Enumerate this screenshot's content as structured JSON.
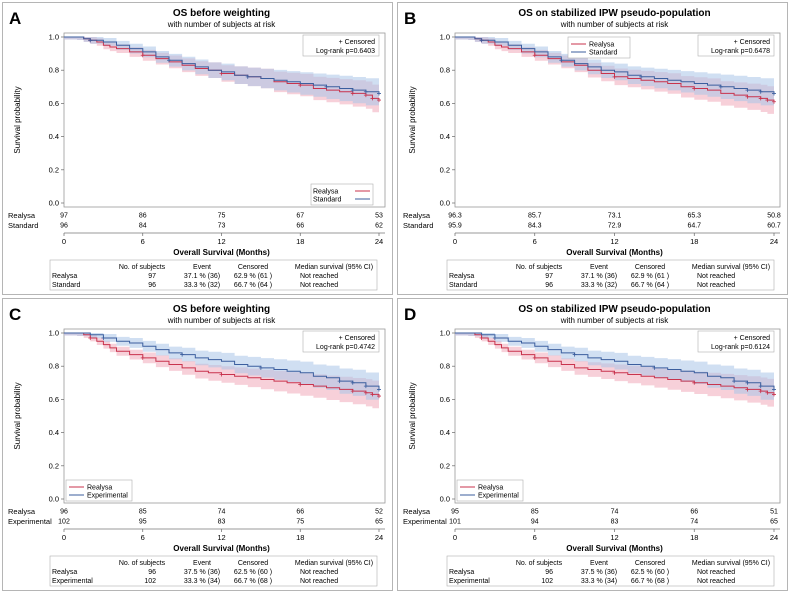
{
  "chart_data": [
    {
      "type": "line",
      "panel_label": "A",
      "title": "OS before weighting",
      "subtitle": "with number of subjects at risk",
      "xlabel": "Overall Survival (Months)",
      "ylabel": "Survival probability",
      "xticks": [
        "0",
        "6",
        "12",
        "18",
        "24"
      ],
      "yticks": [
        "0.0",
        "0.2",
        "0.4",
        "0.6",
        "0.8",
        "1.0"
      ],
      "xlim": [
        0,
        24
      ],
      "ylim": [
        0,
        1
      ],
      "censor_label": "+ Censored",
      "logrank": "Log-rank p=0.6403",
      "legend_position": "lower-right",
      "series": [
        {
          "name": "Realysa",
          "color": "#c8334d",
          "band": "#f1a9b9",
          "x": [
            0,
            1,
            1.5,
            2,
            2.5,
            3,
            3.5,
            4,
            5,
            6,
            7,
            8,
            9,
            10,
            11,
            12,
            13,
            14,
            15,
            16,
            17,
            18,
            19,
            20,
            21,
            22,
            23,
            23.5,
            24
          ],
          "y": [
            1,
            1,
            0.99,
            0.98,
            0.97,
            0.95,
            0.94,
            0.93,
            0.91,
            0.89,
            0.87,
            0.85,
            0.83,
            0.81,
            0.8,
            0.78,
            0.77,
            0.76,
            0.75,
            0.73,
            0.72,
            0.71,
            0.69,
            0.68,
            0.67,
            0.66,
            0.65,
            0.63,
            0.62
          ]
        },
        {
          "name": "Standard",
          "color": "#3b5e9e",
          "band": "#a9c4e8",
          "x": [
            0,
            1,
            1.5,
            2,
            3,
            4,
            5,
            6,
            7,
            8,
            9,
            10,
            11,
            12,
            13,
            14,
            15,
            16,
            17,
            18,
            19,
            20,
            21,
            22,
            23,
            24
          ],
          "y": [
            1,
            1,
            0.99,
            0.98,
            0.97,
            0.95,
            0.93,
            0.91,
            0.88,
            0.86,
            0.84,
            0.82,
            0.8,
            0.79,
            0.77,
            0.76,
            0.75,
            0.74,
            0.73,
            0.72,
            0.71,
            0.7,
            0.69,
            0.68,
            0.67,
            0.66
          ]
        }
      ],
      "at_risk": [
        {
          "name": "Realysa",
          "values": [
            "97",
            "86",
            "75",
            "67",
            "53"
          ]
        },
        {
          "name": "Standard",
          "values": [
            "96",
            "84",
            "73",
            "66",
            "62"
          ]
        }
      ],
      "table": {
        "headers": [
          "No. of subjects",
          "Event",
          "Censored",
          "Median survival (95% CI)"
        ],
        "rows": [
          [
            "Realysa",
            "97",
            "37.1 % (36)",
            "62.9 % (61 )",
            "Not reached"
          ],
          [
            "Standard",
            "96",
            "33.3 % (32)",
            "66.7 % (64 )",
            "Not reached"
          ]
        ]
      }
    },
    {
      "type": "line",
      "panel_label": "B",
      "title": "OS on stabilized IPW pseudo-population",
      "subtitle": "with number of subjects at risk",
      "xlabel": "Overall Survival (Months)",
      "ylabel": "Survival probability",
      "xticks": [
        "0",
        "6",
        "12",
        "18",
        "24"
      ],
      "yticks": [
        "0.0",
        "0.2",
        "0.4",
        "0.6",
        "0.8",
        "1.0"
      ],
      "xlim": [
        0,
        24
      ],
      "ylim": [
        0,
        1
      ],
      "censor_label": "+ Censored",
      "logrank": "Log-rank p=0.6478",
      "legend_position": "top-center",
      "series": [
        {
          "name": "Realysa",
          "color": "#c8334d",
          "band": "#f1a9b9",
          "x": [
            0,
            1,
            1.5,
            2,
            2.5,
            3,
            3.5,
            4,
            5,
            6,
            7,
            8,
            9,
            10,
            11,
            12,
            13,
            14,
            15,
            16,
            17,
            18,
            19,
            20,
            21,
            22,
            23,
            23.5,
            24
          ],
          "y": [
            1,
            1,
            0.99,
            0.98,
            0.97,
            0.95,
            0.94,
            0.93,
            0.91,
            0.89,
            0.87,
            0.85,
            0.83,
            0.8,
            0.78,
            0.76,
            0.75,
            0.74,
            0.73,
            0.72,
            0.7,
            0.69,
            0.68,
            0.66,
            0.65,
            0.64,
            0.63,
            0.62,
            0.61
          ]
        },
        {
          "name": "Standard",
          "color": "#3b5e9e",
          "band": "#a9c4e8",
          "x": [
            0,
            1,
            1.5,
            2,
            3,
            4,
            5,
            6,
            7,
            8,
            9,
            10,
            11,
            12,
            13,
            14,
            15,
            16,
            17,
            18,
            19,
            20,
            21,
            22,
            23,
            24
          ],
          "y": [
            1,
            1,
            0.99,
            0.98,
            0.97,
            0.95,
            0.93,
            0.91,
            0.88,
            0.86,
            0.84,
            0.82,
            0.8,
            0.79,
            0.77,
            0.76,
            0.75,
            0.74,
            0.73,
            0.72,
            0.71,
            0.7,
            0.69,
            0.68,
            0.67,
            0.66
          ]
        }
      ],
      "at_risk": [
        {
          "name": "Realysa",
          "values": [
            "96.3",
            "85.7",
            "73.1",
            "65.3",
            "50.8"
          ]
        },
        {
          "name": "Standard",
          "values": [
            "95.9",
            "84.3",
            "72.9",
            "64.7",
            "60.7"
          ]
        }
      ],
      "table": {
        "headers": [
          "No. of subjects",
          "Event",
          "Censored",
          "Median survival (95% CI)"
        ],
        "rows": [
          [
            "Realysa",
            "97",
            "37.1 % (36)",
            "62.9 % (61 )",
            "Not reached"
          ],
          [
            "Standard",
            "96",
            "33.3 % (32)",
            "66.7 % (64 )",
            "Not reached"
          ]
        ]
      }
    },
    {
      "type": "line",
      "panel_label": "C",
      "title": "OS before weighting",
      "subtitle": "with number of subjects at risk",
      "xlabel": "Overall Survival (Months)",
      "ylabel": "Survival probability",
      "xticks": [
        "0",
        "6",
        "12",
        "18",
        "24"
      ],
      "yticks": [
        "0.0",
        "0.2",
        "0.4",
        "0.6",
        "0.8",
        "1.0"
      ],
      "xlim": [
        0,
        24
      ],
      "ylim": [
        0,
        1
      ],
      "censor_label": "+ Censored",
      "logrank": "Log-rank p=0.4742",
      "legend_position": "lower-left",
      "series": [
        {
          "name": "Realysa",
          "color": "#c8334d",
          "band": "#f1a9b9",
          "x": [
            0,
            1,
            1.5,
            2,
            2.5,
            3,
            3.5,
            4,
            5,
            6,
            7,
            8,
            9,
            10,
            11,
            12,
            13,
            14,
            15,
            16,
            17,
            18,
            19,
            20,
            21,
            22,
            23,
            23.5,
            24
          ],
          "y": [
            1,
            1,
            0.99,
            0.97,
            0.95,
            0.93,
            0.91,
            0.89,
            0.87,
            0.85,
            0.83,
            0.81,
            0.79,
            0.77,
            0.76,
            0.75,
            0.74,
            0.73,
            0.72,
            0.71,
            0.7,
            0.69,
            0.68,
            0.67,
            0.66,
            0.65,
            0.64,
            0.63,
            0.62
          ]
        },
        {
          "name": "Experimental",
          "color": "#3b5e9e",
          "band": "#a9c4e8",
          "x": [
            0,
            1,
            2,
            3,
            4,
            5,
            6,
            7,
            8,
            9,
            10,
            11,
            12,
            13,
            14,
            15,
            16,
            17,
            18,
            19,
            20,
            21,
            22,
            23,
            24
          ],
          "y": [
            1,
            1,
            0.99,
            0.97,
            0.95,
            0.94,
            0.92,
            0.9,
            0.88,
            0.87,
            0.85,
            0.84,
            0.83,
            0.81,
            0.8,
            0.79,
            0.78,
            0.77,
            0.76,
            0.74,
            0.73,
            0.71,
            0.7,
            0.68,
            0.66
          ]
        }
      ],
      "at_risk": [
        {
          "name": "Realysa",
          "values": [
            "96",
            "85",
            "74",
            "66",
            "52"
          ]
        },
        {
          "name": "Experimental",
          "values": [
            "102",
            "95",
            "83",
            "75",
            "65"
          ]
        }
      ],
      "table": {
        "headers": [
          "No. of subjects",
          "Event",
          "Censored",
          "Median survival (95% CI)"
        ],
        "rows": [
          [
            "Realysa",
            "96",
            "37.5 % (36)",
            "62.5 % (60 )",
            "Not reached"
          ],
          [
            "Experimental",
            "102",
            "33.3 % (34)",
            "66.7 % (68 )",
            "Not reached"
          ]
        ]
      }
    },
    {
      "type": "line",
      "panel_label": "D",
      "title": "OS on stabilized IPW pseudo-population",
      "subtitle": "with number of subjects at risk",
      "xlabel": "Overall Survival (Months)",
      "ylabel": "Survival probability",
      "xticks": [
        "0",
        "6",
        "12",
        "18",
        "24"
      ],
      "yticks": [
        "0.0",
        "0.2",
        "0.4",
        "0.6",
        "0.8",
        "1.0"
      ],
      "xlim": [
        0,
        24
      ],
      "ylim": [
        0,
        1
      ],
      "censor_label": "+ Censored",
      "logrank": "Log-rank p=0.6124",
      "legend_position": "lower-left",
      "series": [
        {
          "name": "Realysa",
          "color": "#c8334d",
          "band": "#f1a9b9",
          "x": [
            0,
            1,
            1.5,
            2,
            2.5,
            3,
            3.5,
            4,
            5,
            6,
            7,
            8,
            9,
            10,
            11,
            12,
            13,
            14,
            15,
            16,
            17,
            18,
            19,
            20,
            21,
            22,
            23,
            23.5,
            24
          ],
          "y": [
            1,
            1,
            0.99,
            0.97,
            0.95,
            0.93,
            0.91,
            0.89,
            0.87,
            0.85,
            0.83,
            0.81,
            0.79,
            0.78,
            0.77,
            0.76,
            0.75,
            0.74,
            0.73,
            0.72,
            0.71,
            0.7,
            0.69,
            0.68,
            0.67,
            0.66,
            0.65,
            0.64,
            0.63
          ]
        },
        {
          "name": "Experimental",
          "color": "#3b5e9e",
          "band": "#a9c4e8",
          "x": [
            0,
            1,
            2,
            3,
            4,
            5,
            6,
            7,
            8,
            9,
            10,
            11,
            12,
            13,
            14,
            15,
            16,
            17,
            18,
            19,
            20,
            21,
            22,
            23,
            24
          ],
          "y": [
            1,
            1,
            0.99,
            0.97,
            0.95,
            0.94,
            0.92,
            0.9,
            0.88,
            0.87,
            0.85,
            0.84,
            0.83,
            0.81,
            0.8,
            0.79,
            0.78,
            0.77,
            0.76,
            0.74,
            0.73,
            0.71,
            0.7,
            0.68,
            0.66
          ]
        }
      ],
      "at_risk": [
        {
          "name": "Realysa",
          "values": [
            "95",
            "85",
            "74",
            "66",
            "51"
          ]
        },
        {
          "name": "Experimental",
          "values": [
            "101",
            "94",
            "83",
            "74",
            "65"
          ]
        }
      ],
      "table": {
        "headers": [
          "No. of subjects",
          "Event",
          "Censored",
          "Median survival (95% CI)"
        ],
        "rows": [
          [
            "Realysa",
            "96",
            "37.5 % (36)",
            "62.5 % (60 )",
            "Not reached"
          ],
          [
            "Experimental",
            "102",
            "33.3 % (34)",
            "66.7 % (68 )",
            "Not reached"
          ]
        ]
      }
    }
  ]
}
